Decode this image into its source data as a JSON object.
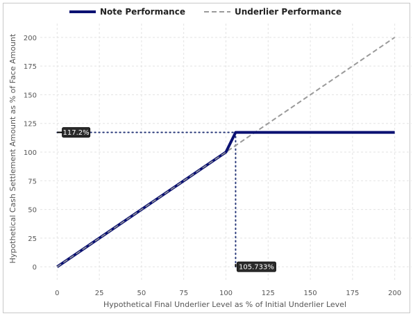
{
  "chart_data": {
    "type": "line",
    "title": "",
    "xlabel": "Hypothetical Final Underlier Level as % of Initial Underlier Level",
    "ylabel": "Hypothetical Cash Settlement Amount as % of Face Amount",
    "xlim": [
      -10,
      210
    ],
    "ylim": [
      -12,
      212
    ],
    "xticks": [
      0,
      25,
      50,
      75,
      100,
      125,
      150,
      175,
      200
    ],
    "yticks": [
      0,
      25,
      50,
      75,
      100,
      125,
      150,
      175,
      200
    ],
    "xtick_labels": [
      "0",
      "25",
      "50",
      "75",
      "100",
      "125",
      "150",
      "175",
      "200"
    ],
    "ytick_labels": [
      "0",
      "25",
      "50",
      "75",
      "100",
      "125",
      "150",
      "175",
      "200"
    ],
    "grid": true,
    "legend_position": "top-center",
    "series": [
      {
        "name": "Note Performance",
        "color": "#0b1172",
        "style": "solid",
        "points": [
          [
            0,
            0
          ],
          [
            100,
            100
          ],
          [
            105.733,
            117.2
          ],
          [
            200,
            117.2
          ]
        ]
      },
      {
        "name": "Underlier Performance",
        "color": "#9a9a9a",
        "style": "dashed",
        "points": [
          [
            0,
            0
          ],
          [
            200,
            200
          ]
        ]
      }
    ],
    "annotations": [
      {
        "label": "117.2%",
        "axis": "y",
        "value": 117.2,
        "x_end": 105.733
      },
      {
        "label": "105.733%",
        "axis": "x",
        "value": 105.733,
        "y_end": 117.2
      }
    ]
  }
}
